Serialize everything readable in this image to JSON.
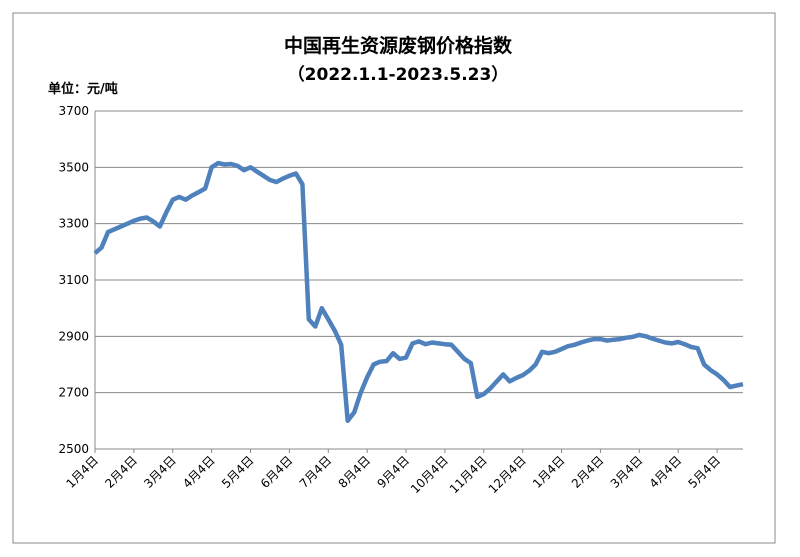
{
  "chart_data": {
    "type": "line",
    "title": "中国再生资源废钢价格指数",
    "subtitle": "（2022.1.1-2023.5.23）",
    "y_label": "单位：元/吨",
    "categories": [
      "1月4日",
      null,
      null,
      null,
      null,
      null,
      "2月4日",
      null,
      null,
      null,
      null,
      null,
      "3月4日",
      null,
      null,
      null,
      null,
      null,
      "4月4日",
      null,
      null,
      null,
      null,
      null,
      "5月4日",
      null,
      null,
      null,
      null,
      null,
      "6月4日",
      null,
      null,
      null,
      null,
      null,
      "7月4日",
      null,
      null,
      null,
      null,
      null,
      "8月4日",
      null,
      null,
      null,
      null,
      null,
      "9月4日",
      null,
      null,
      null,
      null,
      null,
      "10月4日",
      null,
      null,
      null,
      null,
      null,
      "11月4日",
      null,
      null,
      null,
      null,
      null,
      "12月4日",
      null,
      null,
      null,
      null,
      null,
      "1月4日",
      null,
      null,
      null,
      null,
      null,
      "2月4日",
      null,
      null,
      null,
      null,
      null,
      "3月4日",
      null,
      null,
      null,
      null,
      null,
      "4月4日",
      null,
      null,
      null,
      null,
      null,
      "5月4日",
      null,
      null,
      null,
      null
    ],
    "series": [
      {
        "color": "#4f81bd",
        "values": [
          3195,
          3215,
          3270,
          3280,
          3290,
          3300,
          3310,
          3318,
          3322,
          3308,
          3290,
          3340,
          3385,
          3395,
          3385,
          3400,
          3412,
          3425,
          3500,
          3515,
          3510,
          3512,
          3505,
          3490,
          3500,
          3485,
          3470,
          3455,
          3448,
          3460,
          3470,
          3478,
          3440,
          2960,
          2935,
          3000,
          2960,
          2920,
          2870,
          2600,
          2630,
          2700,
          2755,
          2800,
          2810,
          2812,
          2840,
          2820,
          2825,
          2875,
          2882,
          2872,
          2878,
          2875,
          2872,
          2870,
          2845,
          2820,
          2805,
          2685,
          2695,
          2715,
          2740,
          2765,
          2740,
          2752,
          2762,
          2778,
          2800,
          2845,
          2840,
          2845,
          2855,
          2865,
          2870,
          2878,
          2885,
          2890,
          2890,
          2885,
          2888,
          2890,
          2895,
          2898,
          2905,
          2900,
          2892,
          2885,
          2878,
          2875,
          2880,
          2872,
          2862,
          2858,
          2800,
          2780,
          2765,
          2745,
          2720,
          2725,
          2730
        ]
      }
    ],
    "ylim": [
      2500,
      3700
    ],
    "yticks": [
      2500,
      2700,
      2900,
      3100,
      3300,
      3500,
      3700
    ],
    "grid": true
  }
}
